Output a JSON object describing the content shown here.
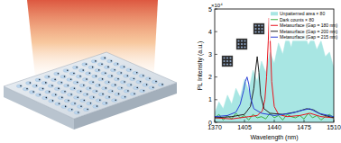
{
  "chart_data": {
    "type": "line",
    "x_label": "Wavelength (nm)",
    "y_label": "PL Intensity (a.u.)",
    "annotations": [
      "×10⁴"
    ],
    "xlim": [
      1370,
      1510
    ],
    "xticks": [
      1370,
      1405,
      1440,
      1475,
      1510
    ],
    "ylim": [
      0,
      5
    ],
    "yticks": [
      0,
      1,
      2,
      3,
      4,
      5
    ],
    "legend": "top-right",
    "series": [
      {
        "name": "Unpatterned area × 80",
        "type": "area",
        "color": "#a8e6e3",
        "x": [
          1370,
          1375,
          1380,
          1385,
          1390,
          1395,
          1400,
          1405,
          1410,
          1415,
          1420,
          1425,
          1430,
          1435,
          1440,
          1445,
          1450,
          1455,
          1460,
          1465,
          1470,
          1475,
          1480,
          1485,
          1490,
          1495,
          1500,
          1505,
          1510
        ],
        "values": [
          0.4,
          0.9,
          0.6,
          1.2,
          0.8,
          1.5,
          1.1,
          1.9,
          1.4,
          2.3,
          1.8,
          2.7,
          2.2,
          3.1,
          2.6,
          3.5,
          3.0,
          3.9,
          3.3,
          4.2,
          3.6,
          4.0,
          3.4,
          3.8,
          3.2,
          3.6,
          2.9,
          3.1,
          2.4
        ]
      },
      {
        "name": "Dark counts × 80",
        "color": "#3cb043",
        "x": [
          1370,
          1375,
          1380,
          1385,
          1390,
          1395,
          1400,
          1405,
          1410,
          1415,
          1420,
          1425,
          1430,
          1435,
          1440,
          1445,
          1450,
          1455,
          1460,
          1465,
          1470,
          1475,
          1480,
          1485,
          1490,
          1495,
          1500,
          1505,
          1510
        ],
        "values": [
          0.2,
          0.35,
          0.1,
          0.3,
          0.15,
          0.4,
          0.2,
          0.3,
          0.1,
          0.35,
          0.2,
          0.25,
          0.15,
          0.4,
          0.2,
          0.3,
          0.1,
          0.35,
          0.25,
          0.2,
          0.3,
          0.15,
          0.4,
          0.2,
          0.3,
          0.1,
          0.25,
          0.35,
          0.2
        ]
      },
      {
        "name": "Metasurface (Gap = 180 nm)",
        "color": "#e8131c",
        "x": [
          1370,
          1390,
          1410,
          1420,
          1426,
          1429,
          1431,
          1433,
          1434,
          1435,
          1437,
          1440,
          1445,
          1455,
          1470,
          1482,
          1495,
          1510
        ],
        "values": [
          0.2,
          0.15,
          0.25,
          0.3,
          0.5,
          1.0,
          2.0,
          3.6,
          4.6,
          3.9,
          1.8,
          0.7,
          0.35,
          0.25,
          0.3,
          0.4,
          0.25,
          0.2
        ]
      },
      {
        "name": "Metasurface (Gap = 200 nm)",
        "color": "#222222",
        "x": [
          1370,
          1390,
          1405,
          1412,
          1416,
          1418,
          1420,
          1422,
          1424,
          1428,
          1435,
          1450,
          1465,
          1478,
          1486,
          1495,
          1510
        ],
        "values": [
          0.2,
          0.25,
          0.35,
          0.7,
          1.5,
          2.3,
          2.9,
          2.2,
          1.2,
          0.6,
          0.4,
          0.35,
          0.45,
          0.6,
          0.55,
          0.35,
          0.2
        ]
      },
      {
        "name": "Metasurface (Gap = 215 nm)",
        "color": "#2a3fd6",
        "x": [
          1370,
          1385,
          1395,
          1400,
          1404,
          1406,
          1408,
          1410,
          1412,
          1416,
          1425,
          1440,
          1460,
          1475,
          1482,
          1492,
          1510
        ],
        "values": [
          0.25,
          0.3,
          0.45,
          0.8,
          1.4,
          1.8,
          2.0,
          1.7,
          1.1,
          0.6,
          0.4,
          0.3,
          0.4,
          0.55,
          0.6,
          0.4,
          0.25
        ]
      }
    ]
  }
}
